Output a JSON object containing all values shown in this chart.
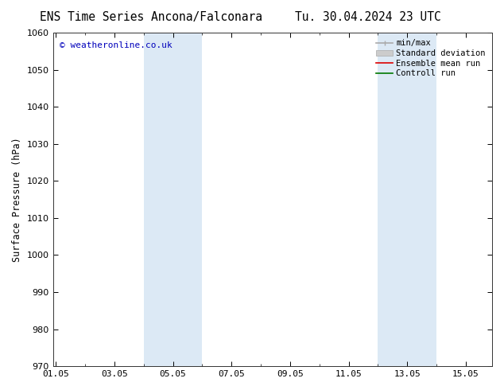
{
  "title_left": "ENS Time Series Ancona/Falconara",
  "title_right": "Tu. 30.04.2024 23 UTC",
  "ylabel": "Surface Pressure (hPa)",
  "ylim": [
    970,
    1060
  ],
  "yticks": [
    970,
    980,
    990,
    1000,
    1010,
    1020,
    1030,
    1040,
    1050,
    1060
  ],
  "xtick_labels": [
    "01.05",
    "03.05",
    "05.05",
    "07.05",
    "09.05",
    "11.05",
    "13.05",
    "15.05"
  ],
  "xtick_positions": [
    0,
    2,
    4,
    6,
    8,
    10,
    12,
    14
  ],
  "xlim": [
    -0.1,
    14.9
  ],
  "shaded_bands": [
    {
      "xmin": 3.0,
      "xmax": 5.0,
      "color": "#dce9f5"
    },
    {
      "xmin": 11.0,
      "xmax": 13.0,
      "color": "#dce9f5"
    }
  ],
  "watermark": "© weatheronline.co.uk",
  "watermark_color": "#0000bb",
  "bg_color": "#ffffff",
  "legend_items": [
    {
      "label": "min/max",
      "color": "#aaaaaa",
      "lw": 1.2,
      "type": "line"
    },
    {
      "label": "Standard deviation",
      "color": "#cccccc",
      "lw": 5,
      "type": "fill"
    },
    {
      "label": "Ensemble mean run",
      "color": "#dd0000",
      "lw": 1.2,
      "type": "line"
    },
    {
      "label": "Controll run",
      "color": "#007700",
      "lw": 1.2,
      "type": "line"
    }
  ],
  "title_fontsize": 10.5,
  "axis_fontsize": 8.5,
  "tick_fontsize": 8.0,
  "legend_fontsize": 7.5
}
